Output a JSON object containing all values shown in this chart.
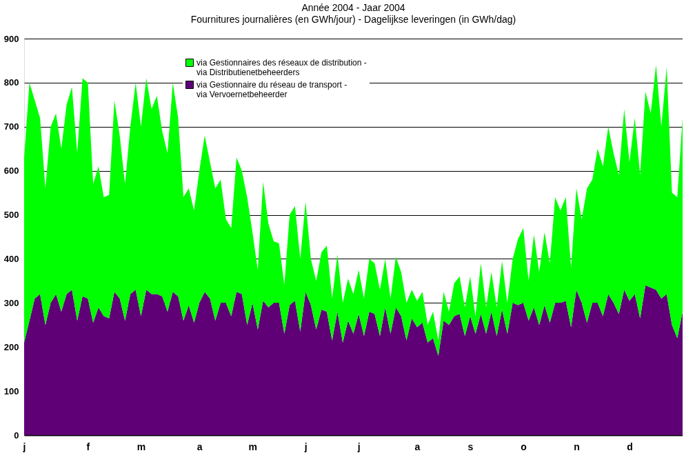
{
  "chart_data": {
    "type": "area",
    "stacked": true,
    "title": "Année 2004 - Jaar 2004",
    "subtitle": "Fournitures journalières (en GWh/jour) - Dagelijkse leveringen (in GWh/dag)",
    "categories": [
      "j",
      null,
      null,
      null,
      null,
      null,
      null,
      null,
      null,
      null,
      null,
      null,
      "f",
      null,
      null,
      null,
      null,
      null,
      null,
      null,
      null,
      null,
      "m",
      null,
      null,
      null,
      null,
      null,
      null,
      null,
      null,
      null,
      null,
      "a",
      null,
      null,
      null,
      null,
      null,
      null,
      null,
      null,
      null,
      "m",
      null,
      null,
      null,
      null,
      null,
      null,
      null,
      null,
      null,
      "j",
      null,
      null,
      null,
      null,
      null,
      null,
      null,
      null,
      null,
      "j",
      null,
      null,
      null,
      null,
      null,
      null,
      null,
      null,
      null,
      null,
      "a",
      null,
      null,
      null,
      null,
      null,
      null,
      null,
      null,
      null,
      "s",
      null,
      null,
      null,
      null,
      null,
      null,
      null,
      null,
      null,
      "o",
      null,
      null,
      null,
      null,
      null,
      null,
      null,
      null,
      null,
      "n",
      null,
      null,
      null,
      null,
      null,
      null,
      null,
      null,
      null,
      "d",
      null,
      null,
      null,
      null,
      null,
      null,
      null,
      null,
      null,
      null
    ],
    "series": [
      {
        "name": "via Gestionnaire du réseau de transport -\nvia Vervoernetbeheerder",
        "color": "#5f0077",
        "values": [
          210,
          260,
          310,
          320,
          250,
          300,
          320,
          280,
          320,
          330,
          260,
          315,
          310,
          255,
          290,
          270,
          265,
          325,
          310,
          260,
          320,
          330,
          270,
          330,
          320,
          320,
          315,
          280,
          325,
          315,
          260,
          295,
          255,
          300,
          325,
          310,
          260,
          300,
          300,
          270,
          325,
          320,
          250,
          300,
          240,
          305,
          290,
          300,
          300,
          230,
          295,
          305,
          235,
          325,
          295,
          240,
          285,
          280,
          215,
          280,
          210,
          260,
          230,
          275,
          225,
          280,
          275,
          225,
          290,
          230,
          290,
          270,
          215,
          265,
          245,
          255,
          210,
          220,
          180,
          260,
          250,
          270,
          275,
          225,
          270,
          230,
          275,
          230,
          280,
          225,
          285,
          230,
          300,
          295,
          300,
          260,
          290,
          250,
          295,
          255,
          300,
          300,
          305,
          245,
          330,
          300,
          255,
          300,
          300,
          270,
          320,
          300,
          275,
          330,
          305,
          320,
          265,
          340,
          335,
          330,
          310,
          320,
          250,
          220,
          280
        ]
      },
      {
        "name": "via Gestionnaires des réseaux de distribution -\nvia Distributienetbeheerders",
        "color": "#00ff00",
        "values": [
          420,
          540,
          450,
          400,
          310,
          400,
          410,
          370,
          430,
          460,
          380,
          495,
          490,
          315,
          320,
          270,
          280,
          435,
          370,
          310,
          380,
          470,
          430,
          480,
          420,
          450,
          375,
          360,
          475,
          405,
          280,
          265,
          255,
          300,
          355,
          310,
          300,
          280,
          190,
          200,
          305,
          280,
          290,
          160,
          135,
          270,
          190,
          140,
          135,
          110,
          205,
          215,
          165,
          205,
          105,
          110,
          130,
          150,
          95,
          130,
          90,
          95,
          90,
          100,
          85,
          120,
          115,
          105,
          110,
          80,
          115,
          100,
          85,
          65,
          60,
          70,
          40,
          60,
          35,
          65,
          30,
          75,
          85,
          65,
          90,
          40,
          115,
          60,
          90,
          65,
          110,
          70,
          100,
          150,
          170,
          90,
          165,
          120,
          165,
          135,
          240,
          210,
          235,
          135,
          230,
          190,
          305,
          280,
          350,
          340,
          380,
          340,
          315,
          410,
          315,
          400,
          325,
          440,
          395,
          510,
          390,
          515,
          300,
          320,
          440
        ]
      }
    ],
    "ylim": [
      0,
      900
    ],
    "yticks": [
      0,
      100,
      200,
      300,
      400,
      500,
      600,
      700,
      800,
      900
    ],
    "grid": "y",
    "legend": "top"
  }
}
